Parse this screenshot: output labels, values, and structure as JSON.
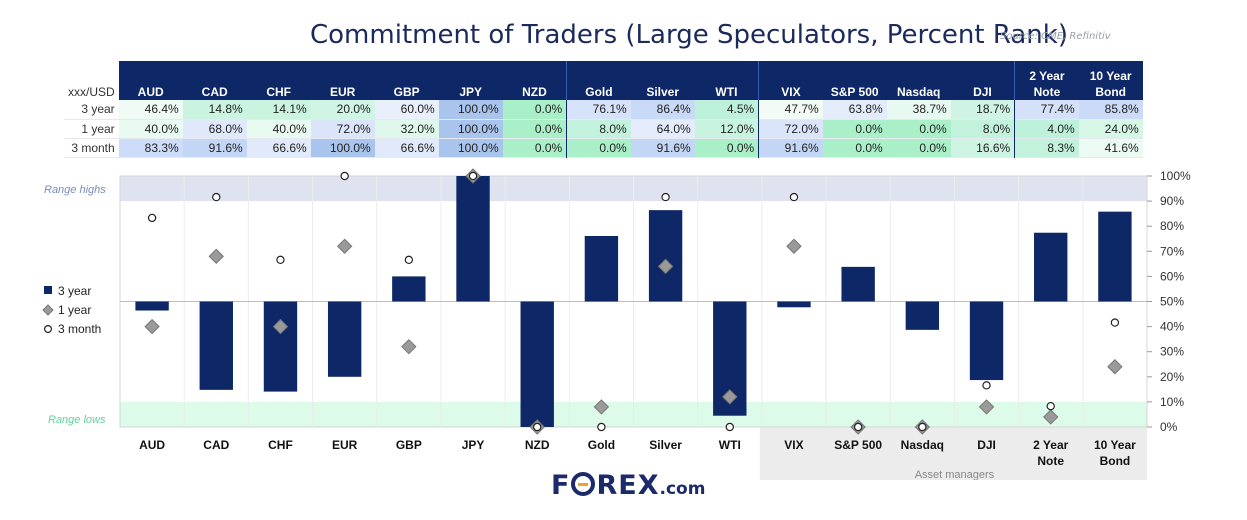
{
  "title": "Commitment of Traders (Large Speculators, Percent Rank)",
  "source": "Source: CME, Refinitiv",
  "table": {
    "corner_label": "xxx/USD",
    "columns": [
      "AUD",
      "CAD",
      "CHF",
      "EUR",
      "GBP",
      "JPY",
      "NZD",
      "Gold",
      "Silver",
      "WTI",
      "VIX",
      "S&P 500",
      "Nasdaq",
      "DJI",
      "2 Year Note",
      "10 Year Bond"
    ],
    "rows": [
      {
        "label": "3 year",
        "values": [
          "46.4%",
          "14.8%",
          "14.1%",
          "20.0%",
          "60.0%",
          "100.0%",
          "0.0%",
          "76.1%",
          "86.4%",
          "4.5%",
          "47.7%",
          "63.8%",
          "38.7%",
          "18.7%",
          "77.4%",
          "85.8%"
        ]
      },
      {
        "label": "1 year",
        "values": [
          "40.0%",
          "68.0%",
          "40.0%",
          "72.0%",
          "32.0%",
          "100.0%",
          "0.0%",
          "8.0%",
          "64.0%",
          "12.0%",
          "72.0%",
          "0.0%",
          "0.0%",
          "8.0%",
          "4.0%",
          "24.0%"
        ]
      },
      {
        "label": "3 month",
        "values": [
          "83.3%",
          "91.6%",
          "66.6%",
          "100.0%",
          "66.6%",
          "100.0%",
          "0.0%",
          "0.0%",
          "91.6%",
          "0.0%",
          "91.6%",
          "0.0%",
          "0.0%",
          "16.6%",
          "8.3%",
          "41.6%"
        ]
      }
    ]
  },
  "chart_data": {
    "type": "bar",
    "categories": [
      "AUD",
      "CAD",
      "CHF",
      "EUR",
      "GBP",
      "JPY",
      "NZD",
      "Gold",
      "Silver",
      "WTI",
      "VIX",
      "S&P 500",
      "Nasdaq",
      "DJI",
      "2 Year Note",
      "10 Year Bond"
    ],
    "series": [
      {
        "name": "3 year",
        "type": "bar",
        "values": [
          46.4,
          14.8,
          14.1,
          20.0,
          60.0,
          100.0,
          0.0,
          76.1,
          86.4,
          4.5,
          47.7,
          63.8,
          38.7,
          18.7,
          77.4,
          85.8
        ]
      },
      {
        "name": "1 year",
        "type": "marker-diamond",
        "values": [
          40.0,
          68.0,
          40.0,
          72.0,
          32.0,
          100.0,
          0.0,
          8.0,
          64.0,
          12.0,
          72.0,
          0.0,
          0.0,
          8.0,
          4.0,
          24.0
        ]
      },
      {
        "name": "3 month",
        "type": "marker-circle",
        "values": [
          83.3,
          91.6,
          66.6,
          100.0,
          66.6,
          100.0,
          0.0,
          0.0,
          91.6,
          0.0,
          91.6,
          0.0,
          0.0,
          16.6,
          8.3,
          41.6
        ]
      }
    ],
    "bar_baseline": 50,
    "ylim": [
      0,
      100
    ],
    "yticks": [
      "0%",
      "10%",
      "20%",
      "30%",
      "40%",
      "50%",
      "60%",
      "70%",
      "80%",
      "90%",
      "100%"
    ],
    "bands": [
      {
        "label": "Range highs",
        "from": 90,
        "to": 100,
        "color": "#dfe3f0"
      },
      {
        "label": "Range lows",
        "from": 0,
        "to": 10,
        "color": "#dcfbe8"
      }
    ],
    "group_label": "Asset managers",
    "legend": [
      "3 year",
      "1 year",
      "3 month"
    ],
    "legend_position": "left",
    "colors": {
      "bar": "#0e2766",
      "diamond": "#9a9a9a",
      "circle": "#ffffff"
    }
  },
  "logo": {
    "brand_pre": "F",
    "brand_post": "REX",
    "suffix": ".com"
  }
}
